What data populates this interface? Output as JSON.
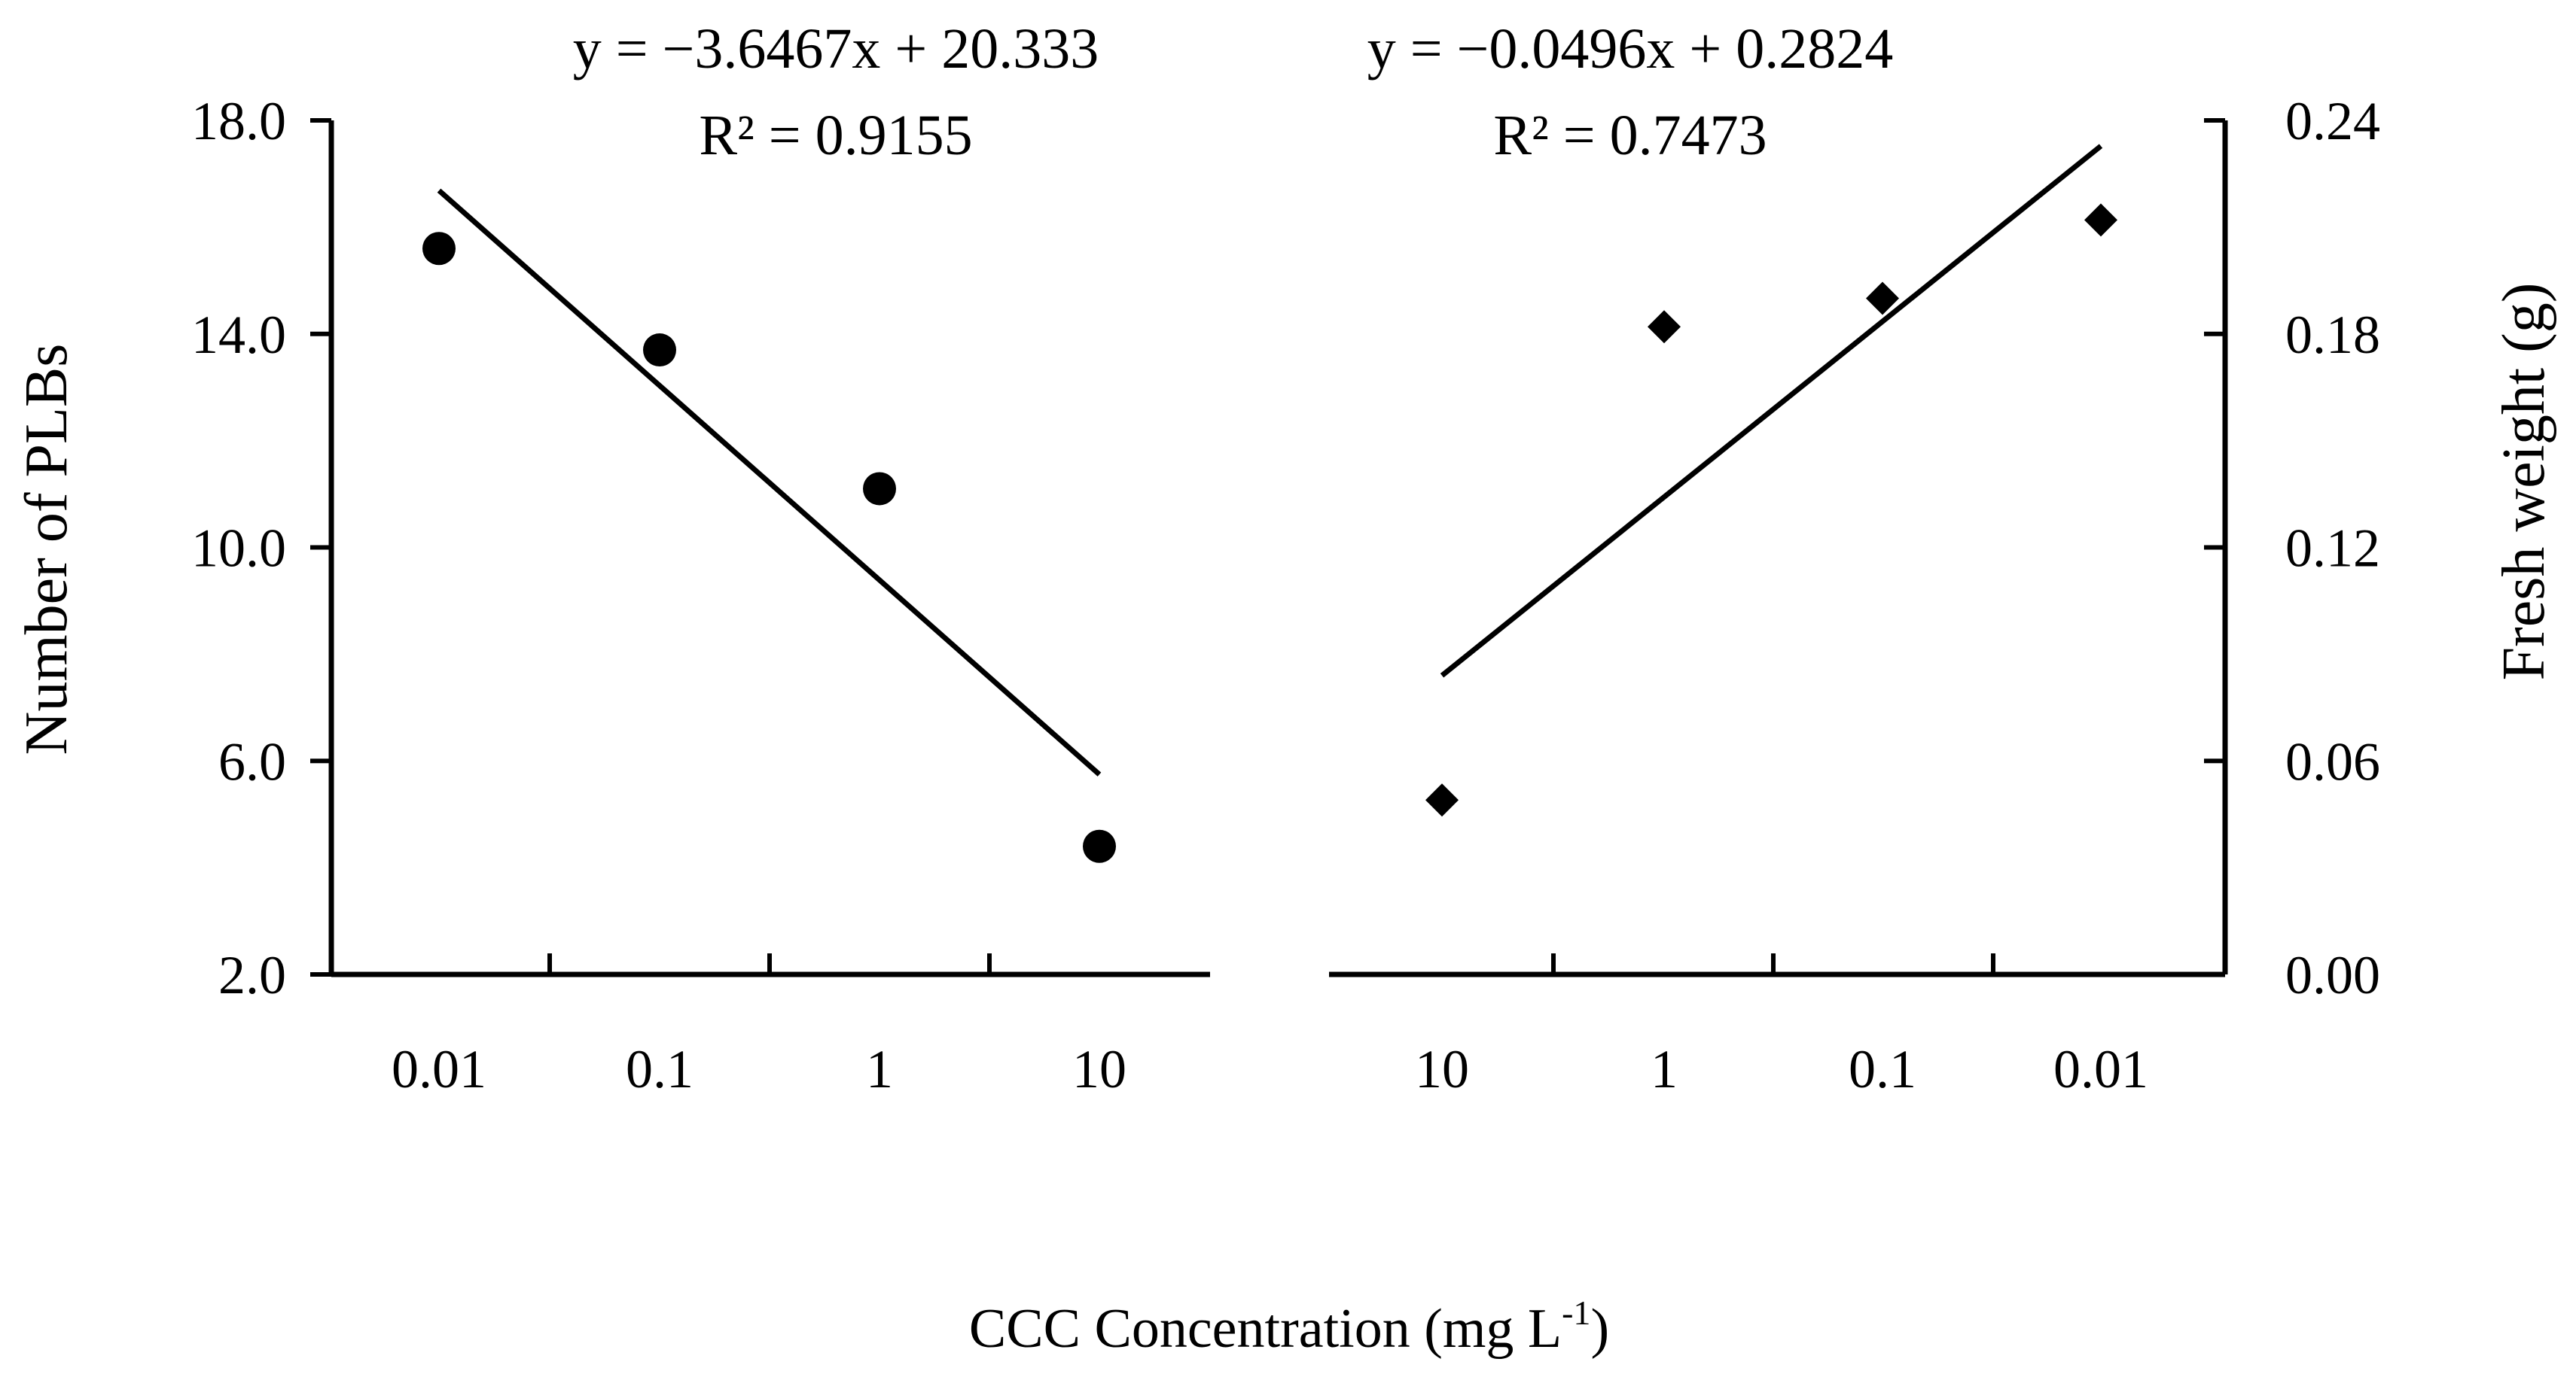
{
  "chart_data": [
    {
      "type": "scatter",
      "series": [
        {
          "name": "Number of PLBs",
          "marker": "circle",
          "x": [
            "0.01",
            "0.1",
            "1",
            "10"
          ],
          "y": [
            15.6,
            13.7,
            11.1,
            4.4
          ]
        }
      ],
      "trendline": {
        "slope": -3.6467,
        "intercept": 20.333
      },
      "equation": "y = −3.6467x + 20.333",
      "r2_text": "R² = 0.9155",
      "ylabel": "Number of PLBs",
      "ylim": [
        2.0,
        18.0
      ],
      "yticks": [
        "2.0",
        "6.0",
        "10.0",
        "14.0",
        "18.0"
      ],
      "xticks": [
        "0.01",
        "0.1",
        "1",
        "10"
      ]
    },
    {
      "type": "scatter",
      "series": [
        {
          "name": "Fresh weight (g)",
          "marker": "diamond",
          "x": [
            "10",
            "1",
            "0.1",
            "0.01"
          ],
          "y": [
            0.049,
            0.182,
            0.19,
            0.212
          ]
        }
      ],
      "trendline": {
        "slope": -0.0496,
        "intercept": 0.2824,
        "x_order": [
          4,
          3,
          2,
          1
        ]
      },
      "equation": "y = −0.0496x + 0.2824",
      "r2_text": "R² = 0.7473",
      "ylabel": "Fresh weight (g)",
      "ylim": [
        0.0,
        0.24
      ],
      "yticks": [
        "0.00",
        "0.06",
        "0.12",
        "0.18",
        "0.24"
      ],
      "xticks": [
        "10",
        "1",
        "0.1",
        "0.01"
      ]
    }
  ],
  "xlabel": {
    "main": "CCC Concentration (mg L",
    "sup": "-1",
    "close": ")"
  },
  "colors": {
    "ink": "#000000",
    "background": "#ffffff"
  }
}
